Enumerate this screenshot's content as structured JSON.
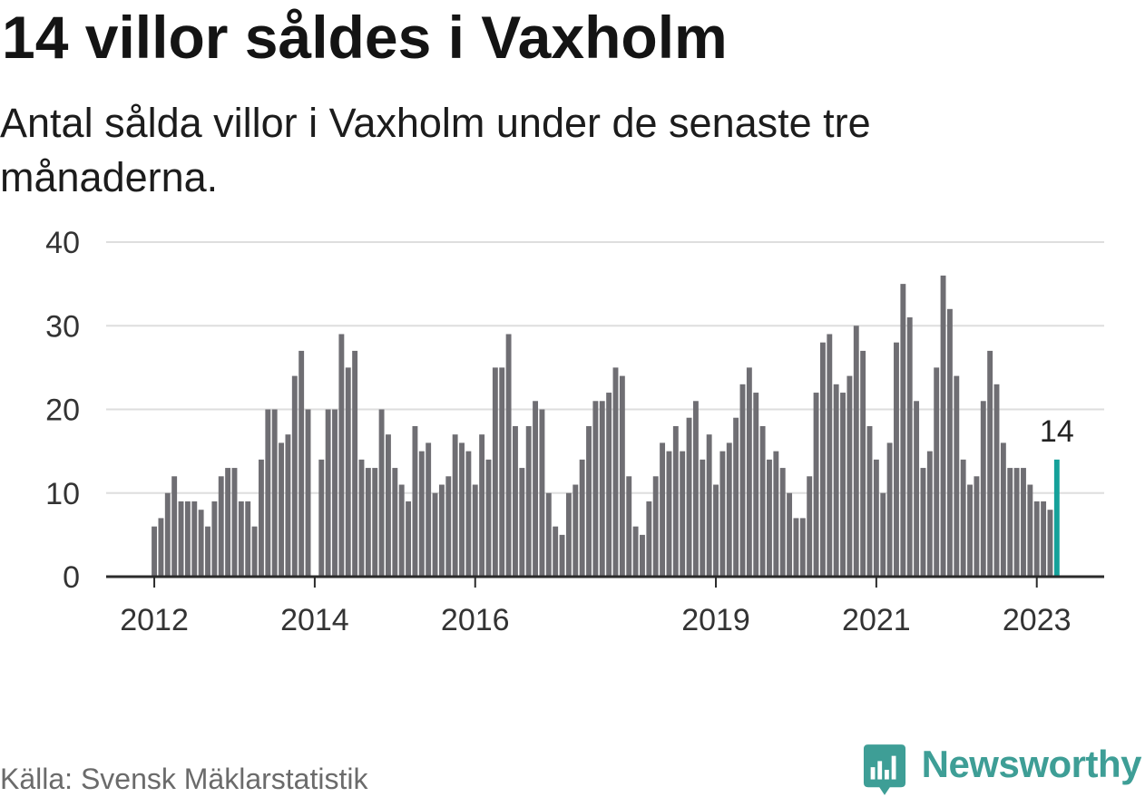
{
  "footer": {
    "source": "Källa: Svensk Mäklarstatistik",
    "brand": "Newsworthy"
  },
  "colors": {
    "bar": "#6f6e73",
    "highlight": "#14a19a",
    "grid": "#dedede",
    "axis": "#2b2b2b",
    "brand": "#3e9e96"
  },
  "chart_data": {
    "type": "bar",
    "title": "14 villor såldes i Vaxholm",
    "subtitle": "Antal sålda villor i Vaxholm under de senaste tre månaderna.",
    "x_start_year": 2012,
    "bars_per_year": 12,
    "xlim": [
      2011.4,
      2023.84
    ],
    "ylim": [
      0,
      40
    ],
    "grid": true,
    "y_ticks": [
      0,
      10,
      20,
      30,
      40
    ],
    "x_ticks": [
      2012,
      2014,
      2016,
      2019,
      2021,
      2023
    ],
    "values": [
      6,
      7,
      10,
      12,
      9,
      9,
      9,
      8,
      6,
      9,
      12,
      13,
      13,
      9,
      9,
      6,
      14,
      20,
      20,
      16,
      17,
      24,
      27,
      20,
      null,
      14,
      20,
      20,
      29,
      25,
      27,
      14,
      13,
      13,
      20,
      17,
      13,
      11,
      9,
      18,
      15,
      16,
      10,
      11,
      12,
      17,
      16,
      15,
      11,
      17,
      14,
      25,
      25,
      29,
      18,
      13,
      18,
      21,
      20,
      10,
      6,
      5,
      10,
      11,
      14,
      18,
      21,
      21,
      22,
      25,
      24,
      12,
      6,
      5,
      9,
      12,
      16,
      15,
      18,
      15,
      19,
      21,
      14,
      17,
      11,
      15,
      16,
      19,
      23,
      25,
      22,
      18,
      14,
      15,
      13,
      10,
      7,
      7,
      12,
      22,
      28,
      29,
      23,
      22,
      24,
      30,
      27,
      18,
      14,
      10,
      16,
      28,
      35,
      31,
      21,
      13,
      15,
      25,
      36,
      32,
      24,
      14,
      11,
      12,
      21,
      27,
      23,
      16,
      13,
      13,
      13,
      11,
      9,
      9,
      8,
      14
    ]
  }
}
